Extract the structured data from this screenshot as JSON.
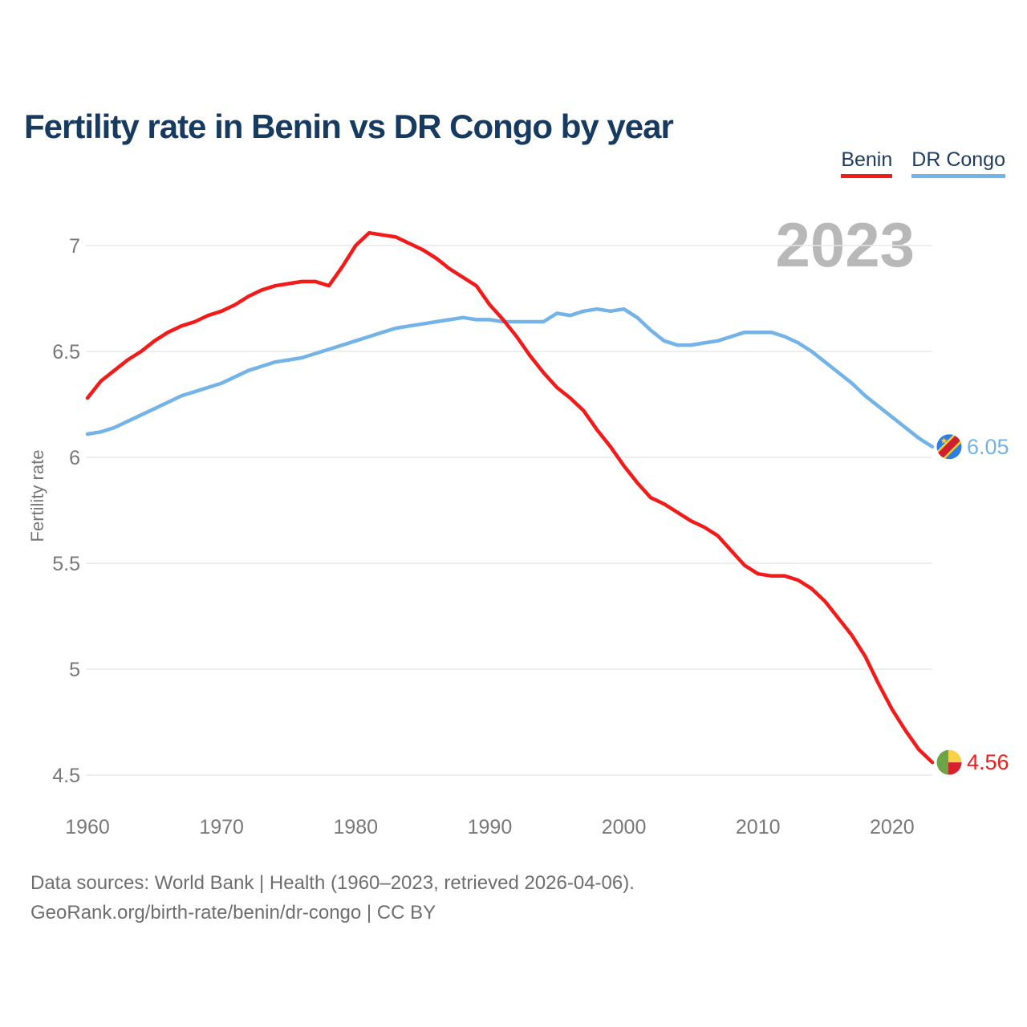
{
  "title": "Fertility rate in Benin vs DR Congo by year",
  "watermark": "2023",
  "legend": [
    {
      "label": "Benin",
      "color": "#f31a1a"
    },
    {
      "label": "DR Congo",
      "color": "#73b3e7"
    }
  ],
  "y_axis": {
    "label": "Fertility rate",
    "ticks": [
      7,
      6.5,
      6,
      5.5,
      5,
      4.5
    ]
  },
  "x_axis": {
    "ticks": [
      1960,
      1970,
      1980,
      1990,
      2000,
      2010,
      2020
    ]
  },
  "end_labels": [
    {
      "series": "DR Congo",
      "value": "6.05",
      "color": "#73b3e7",
      "flag": "dr-congo"
    },
    {
      "series": "Benin",
      "value": "4.56",
      "color": "#f31a1a",
      "flag": "benin"
    }
  ],
  "flag_colors": {
    "benin": {
      "green": "#6da448",
      "yellow": "#f8d24b",
      "red": "#d8202e"
    },
    "dr_congo": {
      "blue": "#2c7ee3",
      "yellow": "#f7cf3e",
      "red": "#d02030"
    }
  },
  "footer": {
    "line1": "Data sources: World Bank | Health (1960–2023, retrieved 2026-04-06).",
    "line2": "GeoRank.org/birth-rate/benin/dr-congo | CC BY"
  },
  "chart_data": {
    "type": "line",
    "title": "Fertility rate in Benin vs DR Congo by year",
    "xlabel": "",
    "ylabel": "Fertility rate",
    "xlim": [
      1960,
      2023
    ],
    "ylim": [
      4.5,
      7.06
    ],
    "grid": "horizontal",
    "legend_position": "top-right",
    "x": [
      1960,
      1961,
      1962,
      1963,
      1964,
      1965,
      1966,
      1967,
      1968,
      1969,
      1970,
      1971,
      1972,
      1973,
      1974,
      1975,
      1976,
      1977,
      1978,
      1979,
      1980,
      1981,
      1982,
      1983,
      1984,
      1985,
      1986,
      1987,
      1988,
      1989,
      1990,
      1991,
      1992,
      1993,
      1994,
      1995,
      1996,
      1997,
      1998,
      1999,
      2000,
      2001,
      2002,
      2003,
      2004,
      2005,
      2006,
      2007,
      2008,
      2009,
      2010,
      2011,
      2012,
      2013,
      2014,
      2015,
      2016,
      2017,
      2018,
      2019,
      2020,
      2021,
      2022,
      2023
    ],
    "series": [
      {
        "name": "DR Congo",
        "color": "#73b3e7",
        "values": [
          6.11,
          6.12,
          6.14,
          6.17,
          6.2,
          6.23,
          6.26,
          6.29,
          6.31,
          6.33,
          6.35,
          6.38,
          6.41,
          6.43,
          6.45,
          6.46,
          6.47,
          6.49,
          6.51,
          6.53,
          6.55,
          6.57,
          6.59,
          6.61,
          6.62,
          6.63,
          6.64,
          6.65,
          6.66,
          6.65,
          6.65,
          6.64,
          6.64,
          6.64,
          6.64,
          6.68,
          6.67,
          6.69,
          6.7,
          6.69,
          6.7,
          6.66,
          6.6,
          6.55,
          6.53,
          6.53,
          6.54,
          6.55,
          6.57,
          6.59,
          6.59,
          6.59,
          6.57,
          6.54,
          6.5,
          6.45,
          6.4,
          6.35,
          6.29,
          6.24,
          6.19,
          6.14,
          6.09,
          6.05
        ]
      },
      {
        "name": "Benin",
        "color": "#f31a1a",
        "values": [
          6.28,
          6.36,
          6.41,
          6.46,
          6.5,
          6.55,
          6.59,
          6.62,
          6.64,
          6.67,
          6.69,
          6.72,
          6.76,
          6.79,
          6.81,
          6.82,
          6.83,
          6.83,
          6.81,
          6.9,
          7.0,
          7.06,
          7.05,
          7.04,
          7.01,
          6.98,
          6.94,
          6.89,
          6.85,
          6.81,
          6.72,
          6.65,
          6.57,
          6.48,
          6.4,
          6.33,
          6.28,
          6.22,
          6.13,
          6.05,
          5.96,
          5.88,
          5.81,
          5.78,
          5.74,
          5.7,
          5.67,
          5.63,
          5.56,
          5.49,
          5.45,
          5.44,
          5.44,
          5.42,
          5.38,
          5.32,
          5.24,
          5.16,
          5.06,
          4.93,
          4.81,
          4.71,
          4.62,
          4.56
        ]
      }
    ]
  }
}
